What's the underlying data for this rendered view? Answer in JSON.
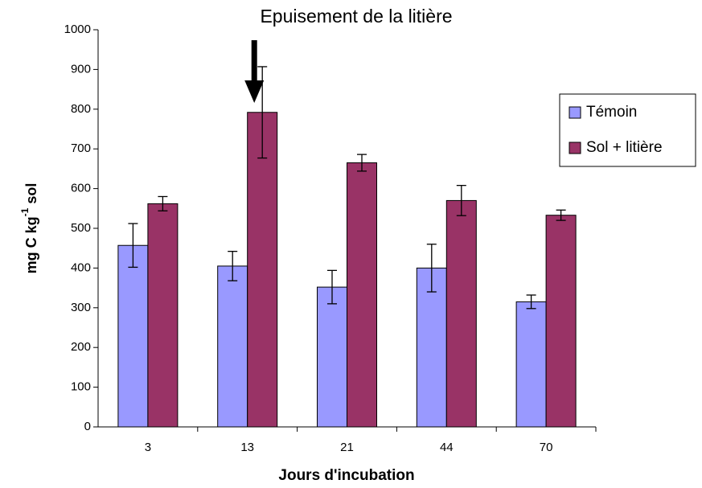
{
  "chart_data": {
    "type": "bar",
    "annotation": "Epuisement de la litière",
    "x_label": "Jours d'incubation",
    "y_label": "mg C kg",
    "y_label_sup": "-1",
    "y_label_end": " sol",
    "categories": [
      "3",
      "13",
      "21",
      "44",
      "70"
    ],
    "series": [
      {
        "name": "Témoin",
        "color": "#9999ff",
        "values": [
          457,
          405,
          352,
          400,
          315
        ],
        "errors": [
          55,
          37,
          42,
          60,
          17
        ]
      },
      {
        "name": "Sol + litière",
        "color": "#993366",
        "values": [
          562,
          792,
          665,
          570,
          533
        ],
        "errors": [
          18,
          115,
          21,
          38,
          13
        ]
      }
    ],
    "ylim": [
      0,
      1000
    ],
    "yticks": [
      0,
      100,
      200,
      300,
      400,
      500,
      600,
      700,
      800,
      900,
      1000
    ],
    "legend": "right"
  }
}
